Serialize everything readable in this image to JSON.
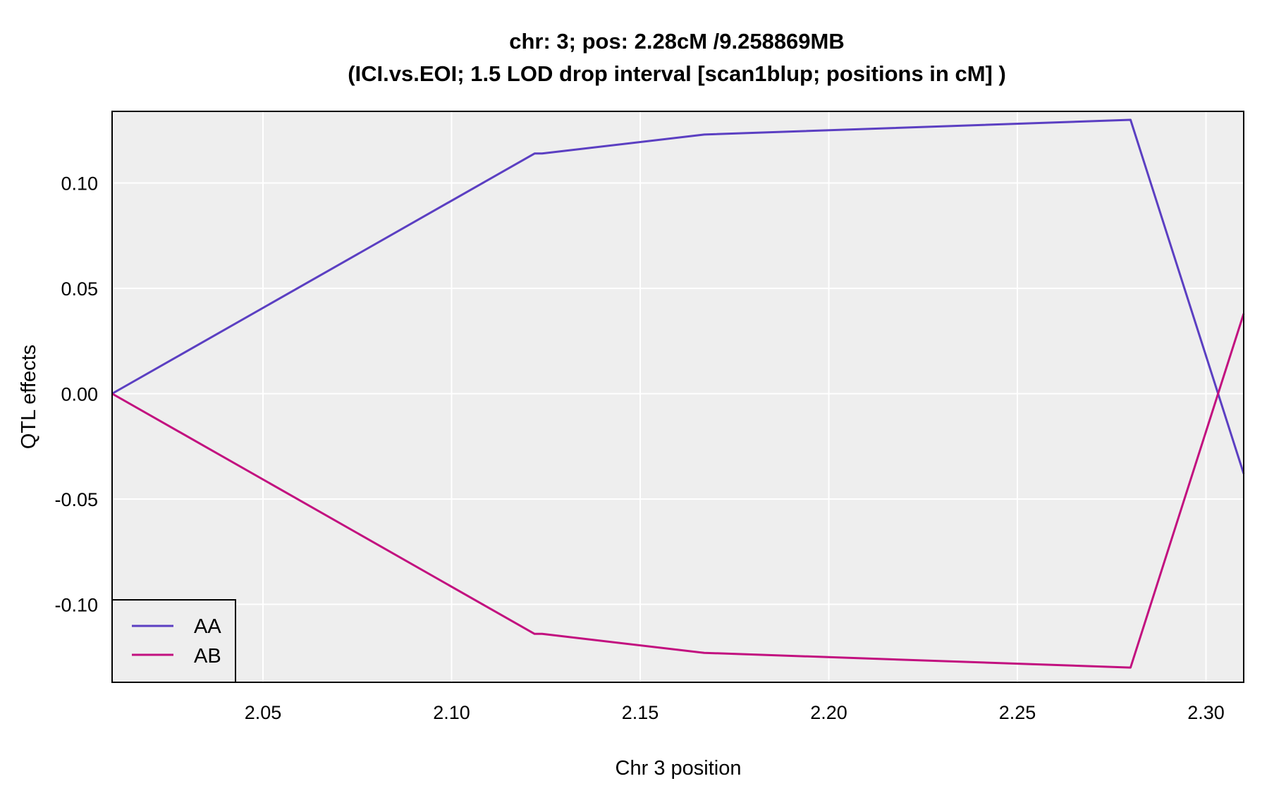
{
  "chart_data": {
    "type": "line",
    "title_line1": "chr: 3; pos: 2.28cM /9.258869MB",
    "title_line2": "(ICI.vs.EOI; 1.5 LOD drop interval [scan1blup; positions in cM] )",
    "xlabel": "Chr 3 position",
    "ylabel": "QTL effects",
    "xlim": [
      2.01,
      2.31
    ],
    "ylim": [
      -0.137,
      0.134
    ],
    "x_ticks": [
      2.05,
      2.1,
      2.15,
      2.2,
      2.25,
      2.3
    ],
    "x_tick_labels": [
      "2.05",
      "2.10",
      "2.15",
      "2.20",
      "2.25",
      "2.30"
    ],
    "y_ticks": [
      0.1,
      0.05,
      0.0,
      -0.05,
      -0.1
    ],
    "y_tick_labels": [
      "0.10",
      "0.05",
      "0.00",
      "-0.05",
      "-0.10"
    ],
    "grid": true,
    "legend_position": "bottom-left",
    "background_color": "#eeeeee",
    "series": [
      {
        "name": "AA",
        "color": "#5b3fc2",
        "points": [
          [
            2.01,
            0.0
          ],
          [
            2.122,
            0.114
          ],
          [
            2.124,
            0.114
          ],
          [
            2.167,
            0.123
          ],
          [
            2.28,
            0.13
          ],
          [
            2.31,
            -0.038
          ]
        ]
      },
      {
        "name": "AB",
        "color": "#c2107f",
        "points": [
          [
            2.01,
            0.0
          ],
          [
            2.122,
            -0.114
          ],
          [
            2.124,
            -0.114
          ],
          [
            2.167,
            -0.123
          ],
          [
            2.28,
            -0.13
          ],
          [
            2.31,
            0.038
          ]
        ]
      }
    ]
  }
}
